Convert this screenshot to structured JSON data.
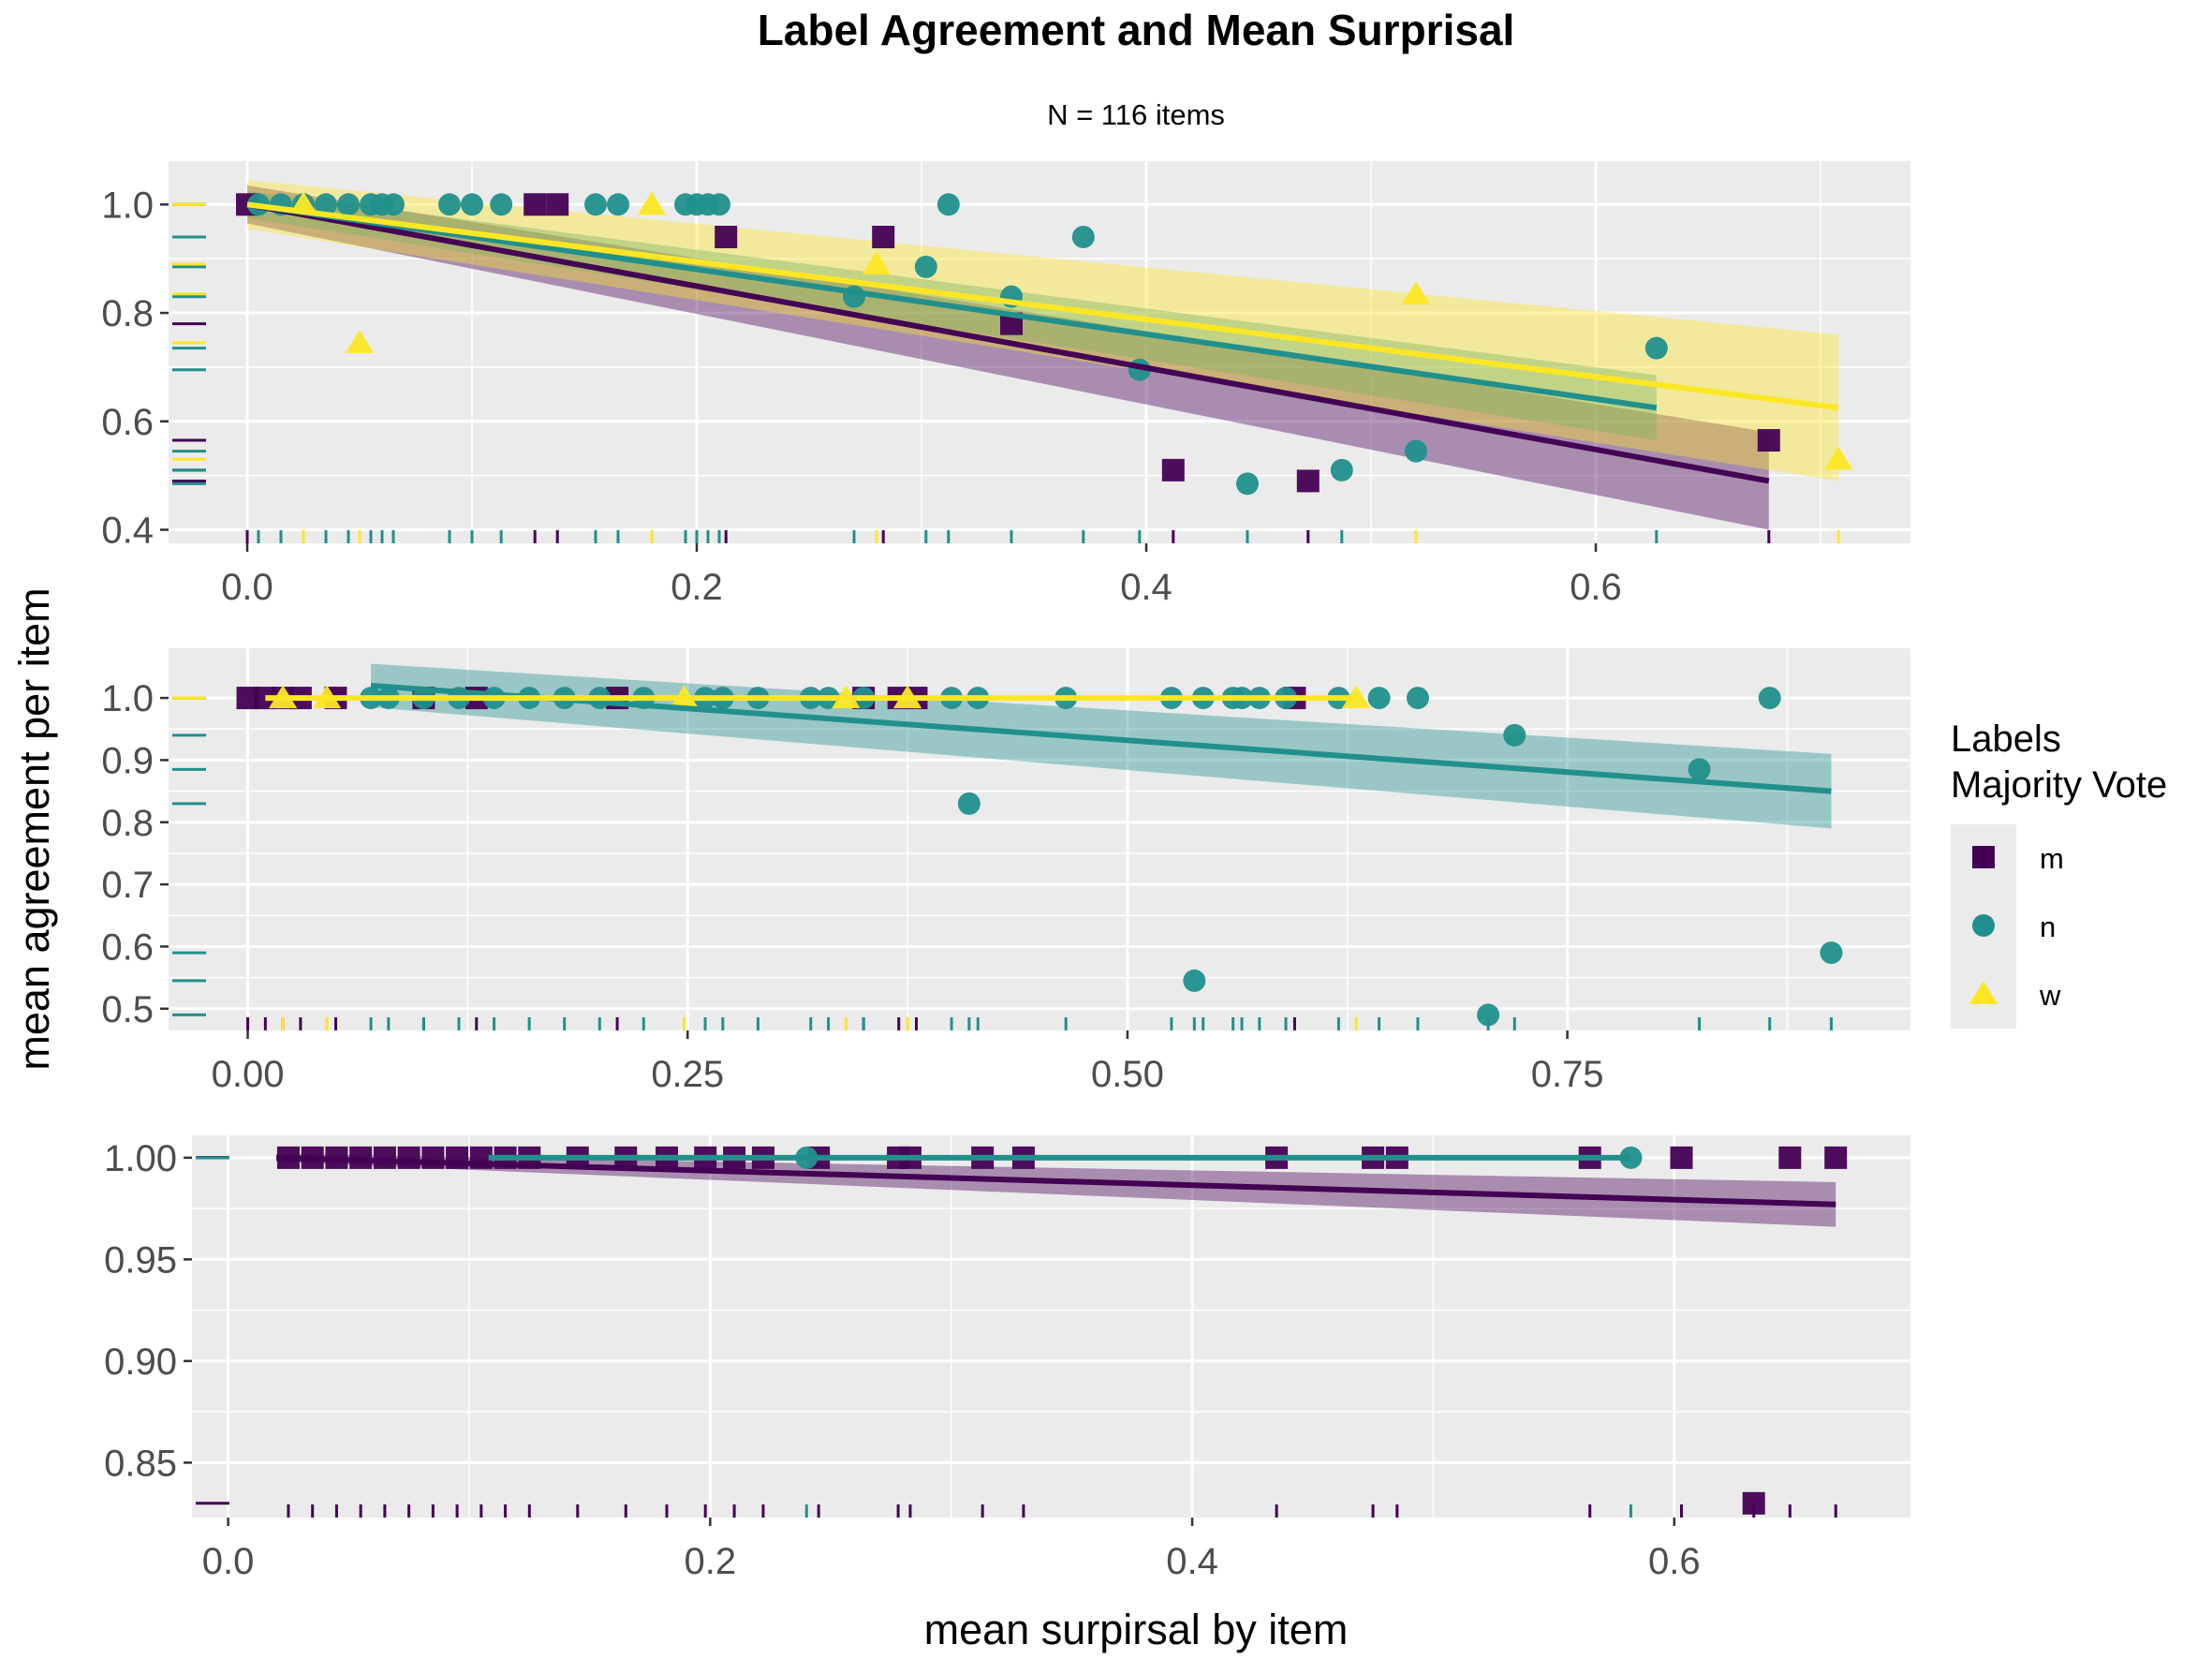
{
  "chart_data": {
    "type": "scatter",
    "title": "Label Agreement and Mean Surprisal",
    "subtitle": "N = 116 items",
    "xlabel": "mean surpirsal by item",
    "ylabel": "mean agreement per item",
    "grid": true,
    "legend": {
      "title_lines": [
        "Labels",
        "Majority Vote"
      ],
      "placement": "right",
      "entries": [
        {
          "label": "m",
          "color": "#440154",
          "shape": "square"
        },
        {
          "label": "n",
          "color": "#21908C",
          "shape": "circle"
        },
        {
          "label": "w",
          "color": "#FDE725",
          "shape": "triangle"
        }
      ]
    },
    "panels": [
      {
        "xlim": [
          -0.035,
          0.74
        ],
        "ylim": [
          0.375,
          1.08
        ],
        "xticks": [
          0.0,
          0.2,
          0.4,
          0.6
        ],
        "xtick_labels": [
          "0.0",
          "0.2",
          "0.4",
          "0.6"
        ],
        "yticks": [
          0.4,
          0.6,
          0.8,
          1.0
        ],
        "ytick_labels": [
          "0.4",
          "0.6",
          "0.8",
          "1.0"
        ],
        "series": [
          {
            "name": "m",
            "points": [
              [
                0.0,
                1.0
              ],
              [
                0.128,
                1.0
              ],
              [
                0.138,
                1.0
              ],
              [
                0.213,
                0.94
              ],
              [
                0.283,
                0.94
              ],
              [
                0.34,
                0.78
              ],
              [
                0.412,
                0.51
              ],
              [
                0.472,
                0.49
              ],
              [
                0.677,
                0.565
              ]
            ]
          },
          {
            "name": "n",
            "points": [
              [
                0.005,
                1.0
              ],
              [
                0.015,
                1.0
              ],
              [
                0.025,
                1.0
              ],
              [
                0.035,
                1.0
              ],
              [
                0.045,
                1.0
              ],
              [
                0.055,
                1.0
              ],
              [
                0.06,
                1.0
              ],
              [
                0.065,
                1.0
              ],
              [
                0.09,
                1.0
              ],
              [
                0.1,
                1.0
              ],
              [
                0.113,
                1.0
              ],
              [
                0.155,
                1.0
              ],
              [
                0.165,
                1.0
              ],
              [
                0.195,
                1.0
              ],
              [
                0.2,
                1.0
              ],
              [
                0.205,
                1.0
              ],
              [
                0.21,
                1.0
              ],
              [
                0.27,
                0.83
              ],
              [
                0.302,
                0.885
              ],
              [
                0.312,
                1.0
              ],
              [
                0.34,
                0.83
              ],
              [
                0.372,
                0.94
              ],
              [
                0.397,
                0.695
              ],
              [
                0.445,
                0.485
              ],
              [
                0.487,
                0.51
              ],
              [
                0.52,
                0.545
              ],
              [
                0.627,
                0.735
              ]
            ]
          },
          {
            "name": "w",
            "points": [
              [
                0.025,
                1.0
              ],
              [
                0.05,
                0.745
              ],
              [
                0.18,
                1.0
              ],
              [
                0.28,
                0.89
              ],
              [
                0.52,
                0.835
              ],
              [
                0.708,
                0.53
              ]
            ]
          }
        ],
        "fits": [
          {
            "name": "m",
            "x": [
              0.0,
              0.677
            ],
            "y": [
              1.0,
              0.49
            ],
            "ci": [
              [
                0.035,
                0.035
              ],
              [
                0.09,
                0.09
              ]
            ]
          },
          {
            "name": "n",
            "x": [
              0.0,
              0.627
            ],
            "y": [
              1.0,
              0.625
            ],
            "ci": [
              [
                0.025,
                0.025
              ],
              [
                0.06,
                0.06
              ]
            ]
          },
          {
            "name": "w",
            "x": [
              0.0,
              0.708
            ],
            "y": [
              1.0,
              0.625
            ],
            "ci": [
              [
                0.045,
                0.045
              ],
              [
                0.135,
                0.135
              ]
            ]
          }
        ]
      },
      {
        "xlim": [
          -0.045,
          0.945
        ],
        "ylim": [
          0.465,
          1.08
        ],
        "xticks": [
          0.0,
          0.25,
          0.5,
          0.75
        ],
        "xtick_labels": [
          "0.00",
          "0.25",
          "0.50",
          "0.75"
        ],
        "yticks": [
          0.5,
          0.6,
          0.7,
          0.8,
          0.9,
          1.0
        ],
        "ytick_labels": [
          "0.5",
          "0.6",
          "0.7",
          "0.8",
          "0.9",
          "1.0"
        ],
        "series": [
          {
            "name": "m",
            "points": [
              [
                0.0,
                1.0
              ],
              [
                0.01,
                1.0
              ],
              [
                0.02,
                1.0
              ],
              [
                0.03,
                1.0
              ],
              [
                0.05,
                1.0
              ],
              [
                0.1,
                1.0
              ],
              [
                0.13,
                1.0
              ],
              [
                0.21,
                1.0
              ],
              [
                0.35,
                1.0
              ],
              [
                0.37,
                1.0
              ],
              [
                0.38,
                1.0
              ],
              [
                0.595,
                1.0
              ]
            ]
          },
          {
            "name": "n",
            "points": [
              [
                0.07,
                1.0
              ],
              [
                0.08,
                1.0
              ],
              [
                0.1,
                1.0
              ],
              [
                0.12,
                1.0
              ],
              [
                0.14,
                1.0
              ],
              [
                0.16,
                1.0
              ],
              [
                0.18,
                1.0
              ],
              [
                0.2,
                1.0
              ],
              [
                0.225,
                1.0
              ],
              [
                0.26,
                1.0
              ],
              [
                0.27,
                1.0
              ],
              [
                0.29,
                1.0
              ],
              [
                0.32,
                1.0
              ],
              [
                0.33,
                1.0
              ],
              [
                0.35,
                1.0
              ],
              [
                0.4,
                1.0
              ],
              [
                0.415,
                1.0
              ],
              [
                0.465,
                1.0
              ],
              [
                0.525,
                1.0
              ],
              [
                0.543,
                1.0
              ],
              [
                0.56,
                1.0
              ],
              [
                0.565,
                1.0
              ],
              [
                0.575,
                1.0
              ],
              [
                0.59,
                1.0
              ],
              [
                0.62,
                1.0
              ],
              [
                0.643,
                1.0
              ],
              [
                0.665,
                1.0
              ],
              [
                0.41,
                0.83
              ],
              [
                0.538,
                0.545
              ],
              [
                0.705,
                0.49
              ],
              [
                0.72,
                0.94
              ],
              [
                0.825,
                0.885
              ],
              [
                0.865,
                1.0
              ],
              [
                0.9,
                0.59
              ]
            ]
          },
          {
            "name": "w",
            "points": [
              [
                0.02,
                1.0
              ],
              [
                0.045,
                1.0
              ],
              [
                0.248,
                1.0
              ],
              [
                0.34,
                1.0
              ],
              [
                0.375,
                1.0
              ],
              [
                0.63,
                1.0
              ]
            ]
          }
        ],
        "fits": [
          {
            "name": "n",
            "x": [
              0.07,
              0.9
            ],
            "y": [
              1.02,
              0.85
            ],
            "ci": [
              [
                0.035,
                0.035
              ],
              [
                0.06,
                0.06
              ]
            ]
          },
          {
            "name": "w",
            "x": [
              0.01,
              0.63
            ],
            "y": [
              1.0,
              1.0
            ],
            "ci": [
              [
                0.0,
                0.0
              ],
              [
                0.0,
                0.0
              ]
            ]
          }
        ]
      },
      {
        "xlim": [
          -0.015,
          0.698
        ],
        "ylim": [
          0.823,
          1.011
        ],
        "xticks": [
          0.0,
          0.2,
          0.4,
          0.6
        ],
        "xtick_labels": [
          "0.0",
          "0.2",
          "0.4",
          "0.6"
        ],
        "yticks": [
          0.85,
          0.9,
          0.95,
          1.0
        ],
        "ytick_labels": [
          "0.85",
          "0.90",
          "0.95",
          "1.00"
        ],
        "series": [
          {
            "name": "m",
            "points": [
              [
                0.025,
                1.0
              ],
              [
                0.035,
                1.0
              ],
              [
                0.045,
                1.0
              ],
              [
                0.055,
                1.0
              ],
              [
                0.065,
                1.0
              ],
              [
                0.075,
                1.0
              ],
              [
                0.085,
                1.0
              ],
              [
                0.095,
                1.0
              ],
              [
                0.105,
                1.0
              ],
              [
                0.115,
                1.0
              ],
              [
                0.125,
                1.0
              ],
              [
                0.145,
                1.0
              ],
              [
                0.165,
                1.0
              ],
              [
                0.182,
                1.0
              ],
              [
                0.198,
                1.0
              ],
              [
                0.21,
                1.0
              ],
              [
                0.222,
                1.0
              ],
              [
                0.245,
                1.0
              ],
              [
                0.278,
                1.0
              ],
              [
                0.283,
                1.0
              ],
              [
                0.313,
                1.0
              ],
              [
                0.33,
                1.0
              ],
              [
                0.435,
                1.0
              ],
              [
                0.475,
                1.0
              ],
              [
                0.485,
                1.0
              ],
              [
                0.565,
                1.0
              ],
              [
                0.603,
                1.0
              ],
              [
                0.633,
                0.83
              ],
              [
                0.648,
                1.0
              ],
              [
                0.667,
                1.0
              ]
            ]
          },
          {
            "name": "n",
            "points": [
              [
                0.24,
                1.0
              ],
              [
                0.582,
                1.0
              ]
            ]
          }
        ],
        "fits": [
          {
            "name": "m",
            "x": [
              0.02,
              0.667
            ],
            "y": [
              1.0,
              0.977
            ],
            "ci": [
              [
                0.002,
                0.002
              ],
              [
                0.011,
                0.011
              ]
            ]
          },
          {
            "name": "n",
            "x": [
              0.108,
              0.582
            ],
            "y": [
              1.0,
              1.0
            ],
            "ci": [
              [
                0.0,
                0.0
              ],
              [
                0.0,
                0.0
              ]
            ]
          }
        ]
      }
    ]
  }
}
